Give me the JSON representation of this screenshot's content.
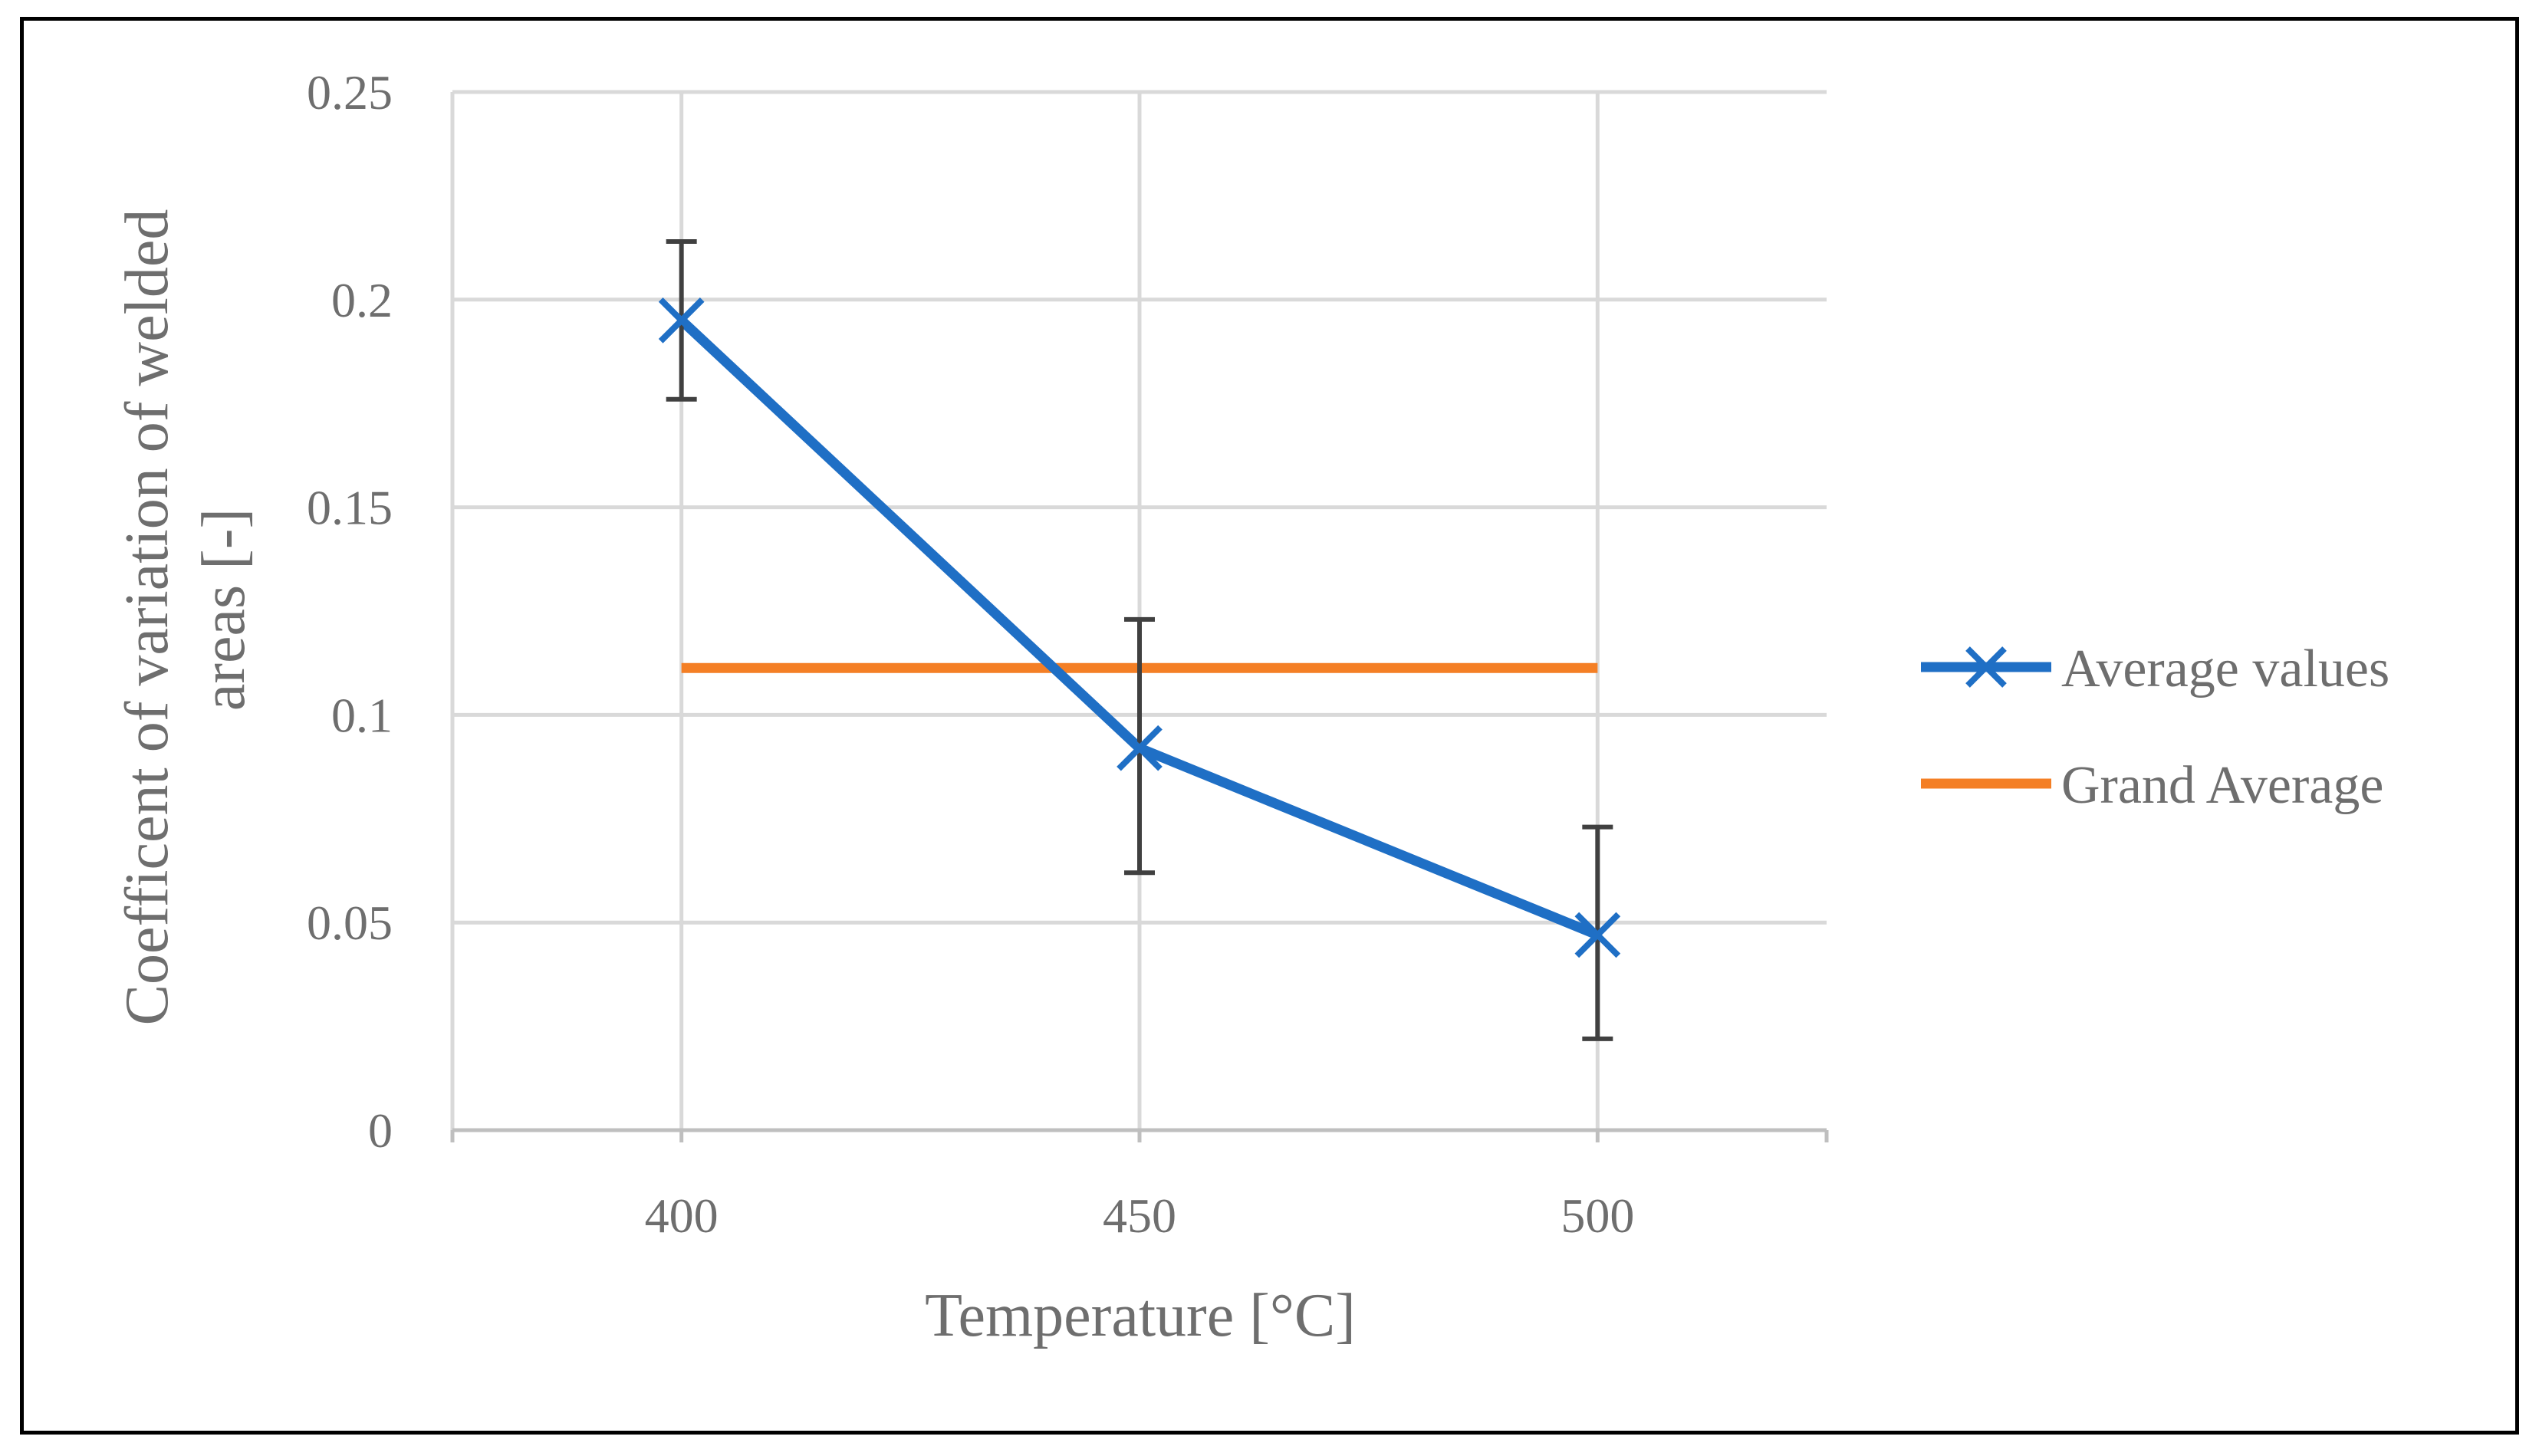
{
  "chart_data": {
    "type": "line",
    "title": "",
    "xlabel": "Temperature [°C]",
    "ylabel_lines": [
      "Coefficent of variation of welded",
      "areas [-]"
    ],
    "categories": [
      "400",
      "450",
      "500"
    ],
    "x": [
      400,
      450,
      500
    ],
    "xlim": [
      375,
      525
    ],
    "ylim": [
      0,
      0.25
    ],
    "y_ticks": [
      0,
      0.05,
      0.1,
      0.15,
      0.2,
      0.25
    ],
    "y_tick_labels": [
      "0",
      "0.05",
      "0.1",
      "0.15",
      "0.2",
      "0.25"
    ],
    "grid": true,
    "legend_position": "right",
    "series": [
      {
        "name": "Average values",
        "values": [
          0.195,
          0.092,
          0.047
        ],
        "error_upper": [
          0.214,
          0.123,
          0.073
        ],
        "error_lower": [
          0.176,
          0.062,
          0.022
        ],
        "marker": "x",
        "color": "#1f6fc5"
      },
      {
        "name": "Grand Average",
        "values": [
          0.1113,
          0.1113,
          0.1113
        ],
        "color": "#f47f25"
      }
    ],
    "colors": {
      "grid": "#d9d9d9",
      "axis": "#bfbfbf",
      "error_bar": "#404040",
      "text": "#6e6e6e"
    }
  }
}
